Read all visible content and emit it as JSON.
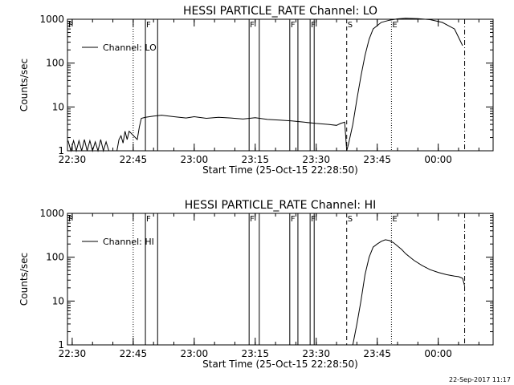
{
  "chart_data": [
    {
      "type": "line",
      "title": "HESSI PARTICLE_RATE Channel: LO",
      "xlabel": "Start Time (25-Oct-15 22:28:50)",
      "ylabel": "Counts/sec",
      "yscale": "log",
      "ylim": [
        1,
        1000
      ],
      "xlim": [
        "22:28:50",
        "00:13:30"
      ],
      "x_ticks": [
        "22:30",
        "22:45",
        "23:00",
        "23:15",
        "23:30",
        "23:45",
        "00:00"
      ],
      "y_ticks": [
        "1",
        "10",
        "100",
        "1000"
      ],
      "legend": {
        "label": "Channel: LO",
        "position": "top-left"
      },
      "markers": [
        {
          "label": "P",
          "time": "22:28:50",
          "style": "solid"
        },
        {
          "label": "",
          "time": "22:45:00",
          "style": "dotted"
        },
        {
          "label": "F",
          "time": "22:48:00",
          "style": "solid"
        },
        {
          "label": "",
          "time": "22:51:00",
          "style": "solid"
        },
        {
          "label": "F",
          "time": "23:13:30",
          "style": "solid"
        },
        {
          "label": "",
          "time": "23:16:00",
          "style": "solid"
        },
        {
          "label": "F",
          "time": "23:23:30",
          "style": "solid"
        },
        {
          "label": "",
          "time": "23:25:30",
          "style": "solid"
        },
        {
          "label": "F",
          "time": "23:28:30",
          "style": "solid"
        },
        {
          "label": "",
          "time": "23:29:30",
          "style": "solid"
        },
        {
          "label": "S",
          "time": "23:37:30",
          "style": "dashed"
        },
        {
          "label": "E",
          "time": "23:48:30",
          "style": "dotted"
        },
        {
          "label": "",
          "time": "00:06:30",
          "style": "dashdot"
        }
      ],
      "series": [
        {
          "name": "Channel: LO",
          "x": [
            "22:29:00",
            "22:29:40",
            "22:30:20",
            "22:31:00",
            "22:31:40",
            "22:32:20",
            "22:33:00",
            "22:33:40",
            "22:34:20",
            "22:35:00",
            "22:35:40",
            "22:36:20",
            "22:37:00",
            "22:37:40",
            "22:38:20",
            "22:39:00",
            "22:40:00",
            "22:41:00",
            "22:41:30",
            "22:42:00",
            "22:42:30",
            "22:43:00",
            "22:43:30",
            "22:44:00",
            "22:46:00",
            "22:46:30",
            "22:47:00",
            "22:48:00",
            "22:50:00",
            "22:52:00",
            "22:55:00",
            "22:58:00",
            "23:00:00",
            "23:03:00",
            "23:06:00",
            "23:09:00",
            "23:12:00",
            "23:15:00",
            "23:18:00",
            "23:21:00",
            "23:24:00",
            "23:27:00",
            "23:30:00",
            "23:33:00",
            "23:35:00",
            "23:36:00",
            "23:37:00",
            "23:37:30",
            "23:38:00",
            "23:39:00",
            "23:40:00",
            "23:41:00",
            "23:42:00",
            "23:43:00",
            "23:44:00",
            "23:46:00",
            "23:48:00",
            "23:50:00",
            "23:52:00",
            "23:55:00",
            "23:58:00",
            "00:01:00",
            "00:04:00",
            "00:06:00"
          ],
          "y": [
            1.7,
            1,
            1.7,
            1,
            1.7,
            1,
            1.8,
            1,
            1.7,
            1,
            1.6,
            1,
            1.8,
            1,
            1.6,
            1,
            1,
            1,
            1.8,
            2.2,
            1.5,
            2.8,
            1.8,
            2.8,
            1.8,
            3.5,
            5.5,
            5.8,
            6.2,
            6.5,
            6.0,
            5.6,
            6.0,
            5.5,
            5.8,
            5.6,
            5.3,
            5.7,
            5.2,
            5.0,
            4.8,
            4.5,
            4.2,
            4.0,
            3.8,
            4.2,
            4.5,
            1,
            1.5,
            4,
            15,
            50,
            150,
            350,
            600,
            850,
            950,
            1020,
            1050,
            1030,
            980,
            850,
            600,
            250
          ]
        }
      ]
    },
    {
      "type": "line",
      "title": "HESSI PARTICLE_RATE Channel: HI",
      "xlabel": "Start Time (25-Oct-15 22:28:50)",
      "ylabel": "Counts/sec",
      "yscale": "log",
      "ylim": [
        1,
        1000
      ],
      "xlim": [
        "22:28:50",
        "00:13:30"
      ],
      "x_ticks": [
        "22:30",
        "22:45",
        "23:00",
        "23:15",
        "23:30",
        "23:45",
        "00:00"
      ],
      "y_ticks": [
        "1",
        "10",
        "100",
        "1000"
      ],
      "legend": {
        "label": "Channel: HI",
        "position": "top-left"
      },
      "markers": [
        {
          "label": "P",
          "time": "22:28:50",
          "style": "solid"
        },
        {
          "label": "",
          "time": "22:45:00",
          "style": "dotted"
        },
        {
          "label": "F",
          "time": "22:48:00",
          "style": "solid"
        },
        {
          "label": "",
          "time": "22:51:00",
          "style": "solid"
        },
        {
          "label": "F",
          "time": "23:13:30",
          "style": "solid"
        },
        {
          "label": "",
          "time": "23:16:00",
          "style": "solid"
        },
        {
          "label": "F",
          "time": "23:23:30",
          "style": "solid"
        },
        {
          "label": "",
          "time": "23:25:30",
          "style": "solid"
        },
        {
          "label": "F",
          "time": "23:28:30",
          "style": "solid"
        },
        {
          "label": "",
          "time": "23:29:30",
          "style": "solid"
        },
        {
          "label": "S",
          "time": "23:37:30",
          "style": "dashed"
        },
        {
          "label": "E",
          "time": "23:48:30",
          "style": "dotted"
        },
        {
          "label": "",
          "time": "00:06:30",
          "style": "dashdot"
        }
      ],
      "series": [
        {
          "name": "Channel: HI",
          "x": [
            "23:39:00",
            "23:40:00",
            "23:41:00",
            "23:42:00",
            "23:43:00",
            "23:44:00",
            "23:45:00",
            "23:46:00",
            "23:47:00",
            "23:48:00",
            "23:49:00",
            "23:50:00",
            "23:51:00",
            "23:52:00",
            "23:54:00",
            "23:56:00",
            "23:58:00",
            "00:00:00",
            "00:02:00",
            "00:04:00",
            "00:05:00",
            "00:06:00",
            "00:06:30"
          ],
          "y": [
            1,
            3,
            10,
            40,
            100,
            170,
            200,
            230,
            250,
            240,
            215,
            180,
            150,
            120,
            85,
            65,
            52,
            45,
            40,
            37,
            36,
            33,
            22
          ]
        }
      ]
    }
  ],
  "footer": {
    "timestamp": "22-Sep-2017 11:17"
  }
}
